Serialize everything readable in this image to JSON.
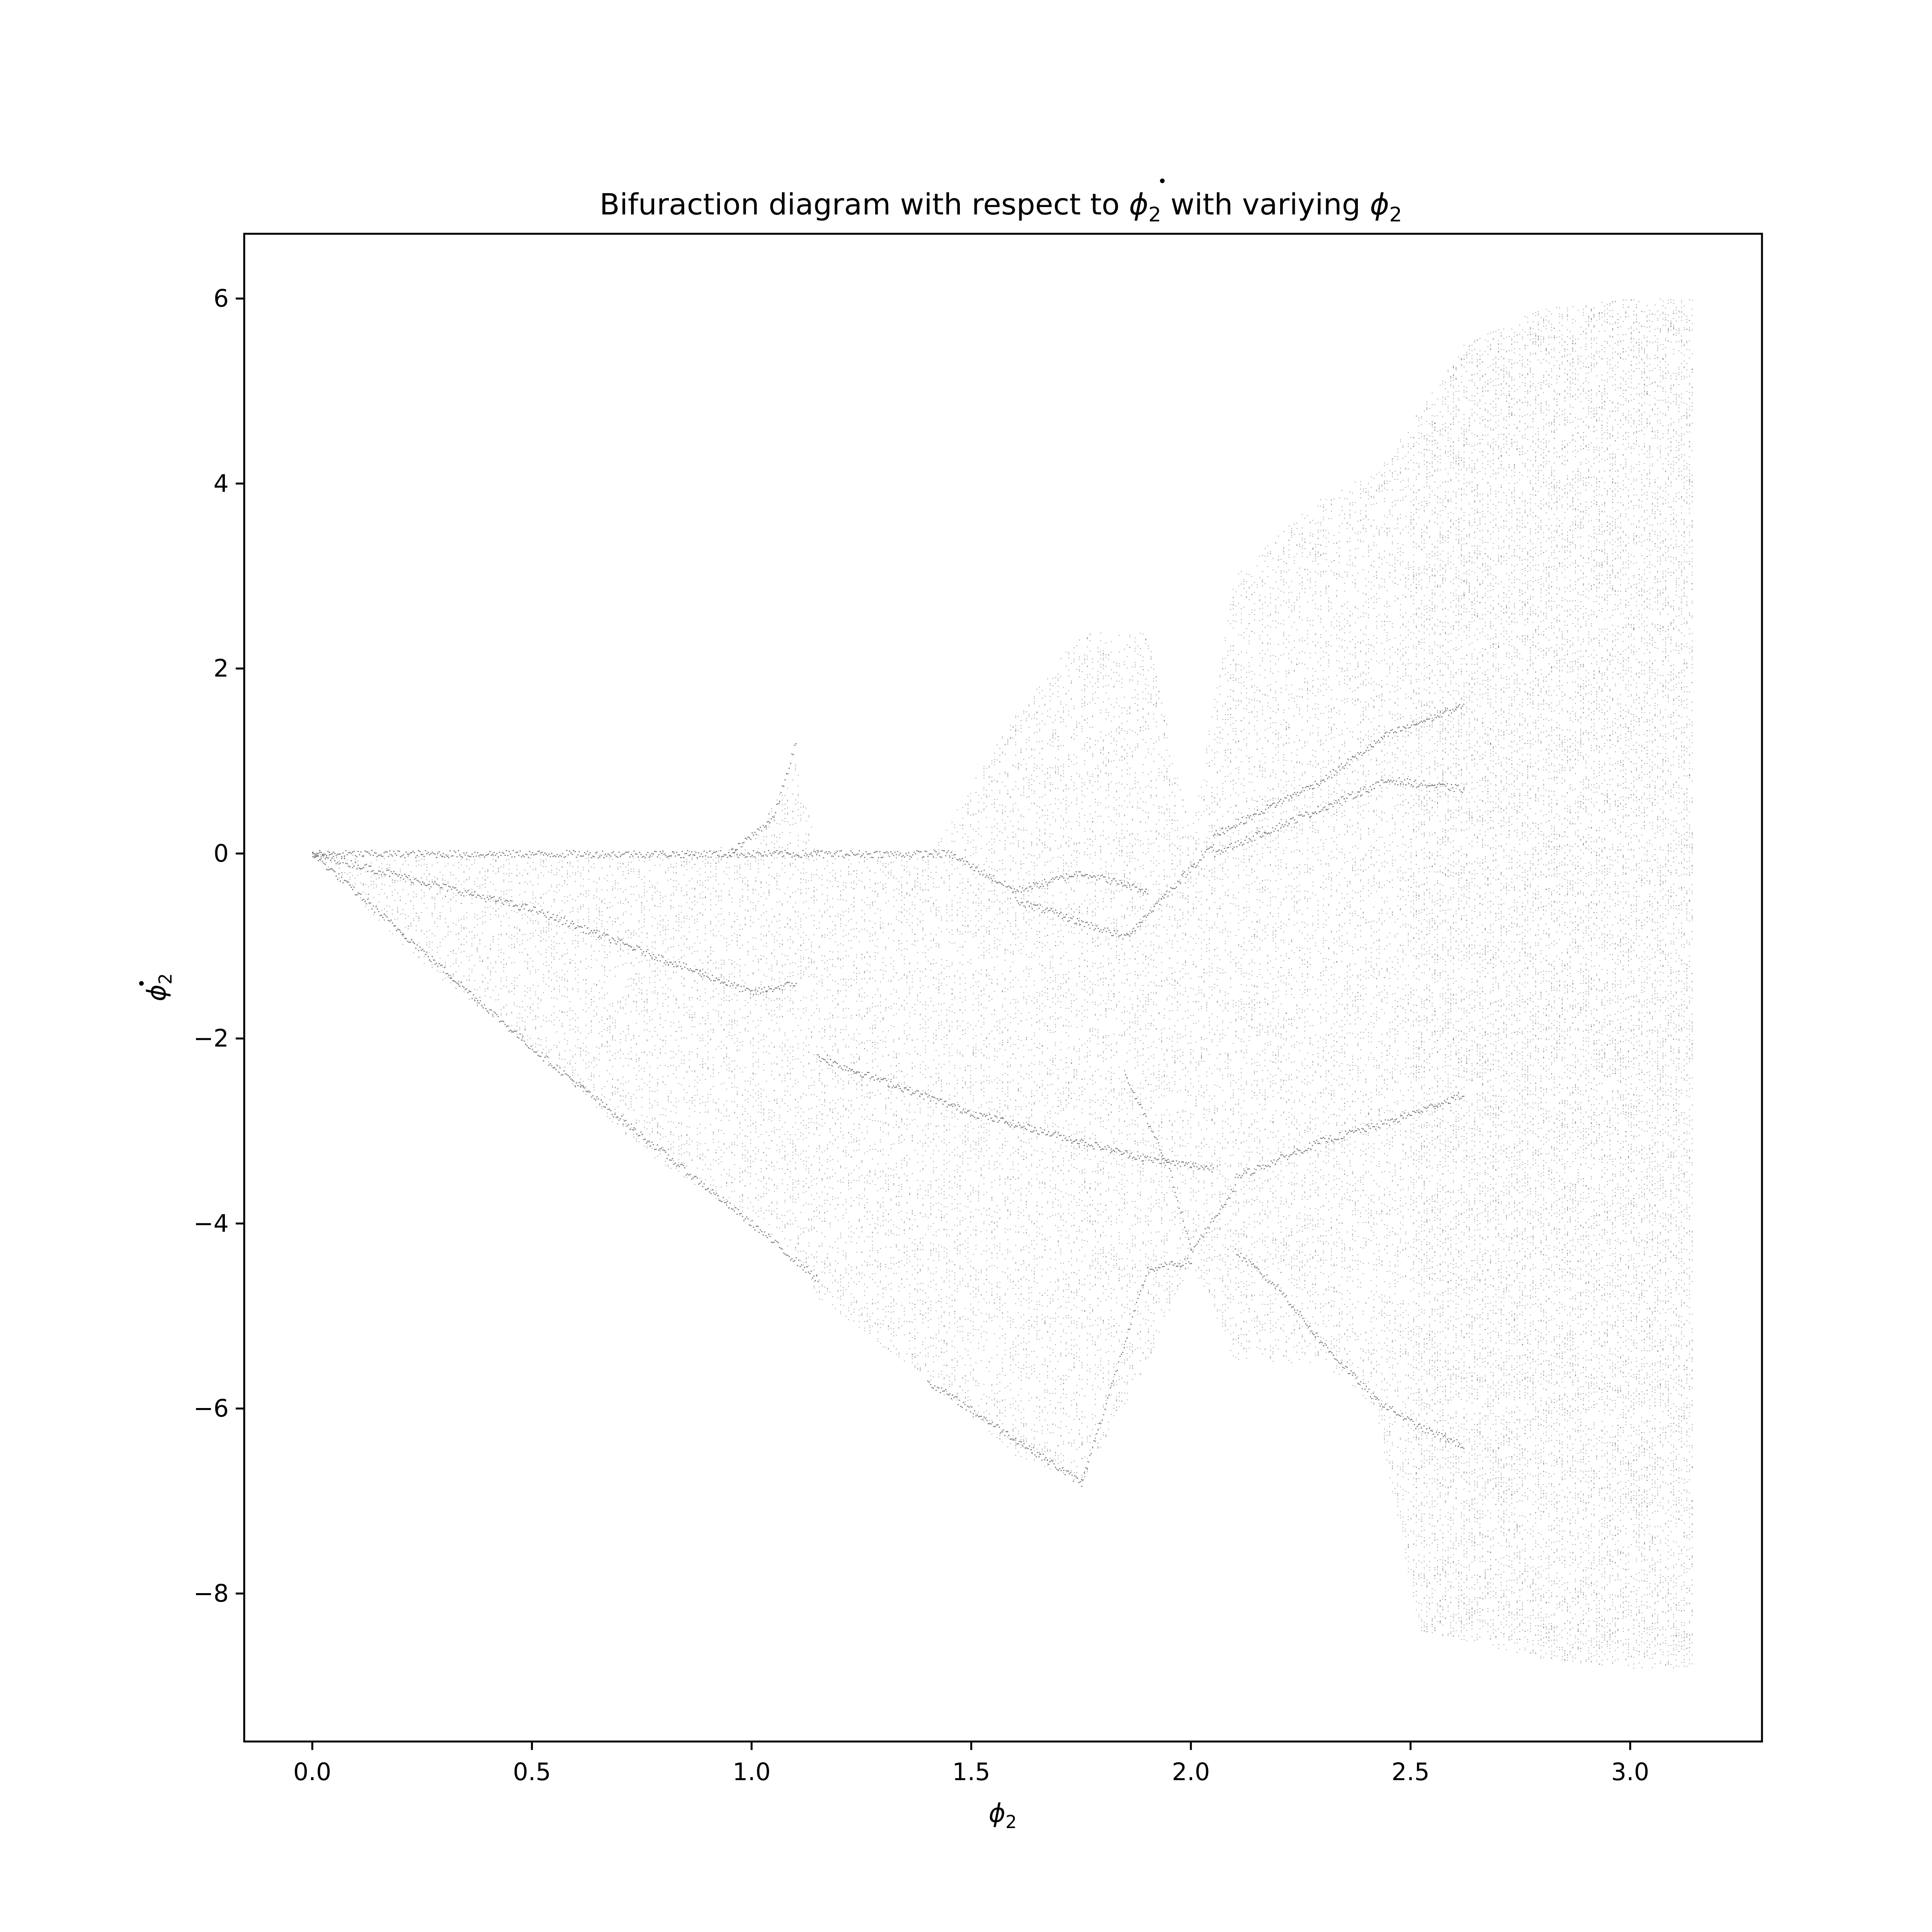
{
  "chart_data": {
    "type": "scatter",
    "title": {
      "prefix": "Bifuraction diagram with respect to ",
      "sym1": "ϕ",
      "sub1": "2",
      "middle": " with variying ",
      "sym2": "ϕ",
      "sub2": "2"
    },
    "xlabel": {
      "sym": "ϕ",
      "sub": "2"
    },
    "ylabel": {
      "sym": "ϕ",
      "sub": "2"
    },
    "xlim": [
      -0.155,
      3.3
    ],
    "ylim": [
      -9.6,
      6.7
    ],
    "x_ticks": [
      0.0,
      0.5,
      1.0,
      1.5,
      2.0,
      2.5,
      3.0
    ],
    "x_tick_labels": [
      "0.0",
      "0.5",
      "1.0",
      "1.5",
      "2.0",
      "2.5",
      "3.0"
    ],
    "y_ticks": [
      -8,
      -6,
      -4,
      -2,
      0,
      2,
      4,
      6
    ],
    "y_tick_labels": [
      "−8",
      "−6",
      "−4",
      "−2",
      "0",
      "2",
      "4",
      "6"
    ],
    "grid": false,
    "legend": "none",
    "marker_color": "#555555",
    "x_range_sampled": [
      0.0,
      3.14
    ],
    "envelope": [
      {
        "x": 0.0,
        "y_min": 0.0,
        "y_max": 0.0
      },
      {
        "x": 0.25,
        "y_min": -1.2,
        "y_max": 0.0
      },
      {
        "x": 0.5,
        "y_min": -2.1,
        "y_max": 0.0
      },
      {
        "x": 0.75,
        "y_min": -3.2,
        "y_max": 0.0
      },
      {
        "x": 1.0,
        "y_min": -4.0,
        "y_max": 0.1
      },
      {
        "x": 1.1,
        "y_min": -4.3,
        "y_max": 1.0
      },
      {
        "x": 1.15,
        "y_min": -4.8,
        "y_max": 0.0
      },
      {
        "x": 1.4,
        "y_min": -5.7,
        "y_max": 0.0
      },
      {
        "x": 1.6,
        "y_min": -6.5,
        "y_max": 1.5
      },
      {
        "x": 1.75,
        "y_min": -6.8,
        "y_max": 2.4
      },
      {
        "x": 1.9,
        "y_min": -5.5,
        "y_max": 2.4
      },
      {
        "x": 2.0,
        "y_min": -4.4,
        "y_max": 0.2
      },
      {
        "x": 2.1,
        "y_min": -5.5,
        "y_max": 3.0
      },
      {
        "x": 2.3,
        "y_min": -5.5,
        "y_max": 3.9
      },
      {
        "x": 2.42,
        "y_min": -6.0,
        "y_max": 4.1
      },
      {
        "x": 2.52,
        "y_min": -8.4,
        "y_max": 4.8
      },
      {
        "x": 2.62,
        "y_min": -8.5,
        "y_max": 5.5
      },
      {
        "x": 2.8,
        "y_min": -8.7,
        "y_max": 5.9
      },
      {
        "x": 3.0,
        "y_min": -8.8,
        "y_max": 6.0
      },
      {
        "x": 3.14,
        "y_min": -8.8,
        "y_max": 6.0
      }
    ],
    "branches": [
      {
        "x": [
          0.0,
          1.15
        ],
        "y": [
          0.0,
          0.0
        ]
      },
      {
        "x": [
          0.0,
          0.5,
          1.0,
          1.1
        ],
        "y": [
          0.0,
          -0.6,
          -1.5,
          -1.4
        ]
      },
      {
        "x": [
          0.0,
          0.5,
          1.0,
          1.15
        ],
        "y": [
          0.0,
          -2.1,
          -4.0,
          -4.6
        ]
      },
      {
        "x": [
          0.95,
          1.05,
          1.1
        ],
        "y": [
          0.0,
          0.4,
          1.2
        ]
      },
      {
        "x": [
          1.15,
          1.45,
          1.6,
          1.75,
          1.9
        ],
        "y": [
          0.0,
          0.0,
          -0.4,
          -0.2,
          -0.4
        ]
      },
      {
        "x": [
          1.15,
          1.5,
          1.9,
          2.05
        ],
        "y": [
          -2.2,
          -2.8,
          -3.3,
          -3.4
        ]
      },
      {
        "x": [
          1.4,
          1.75
        ],
        "y": [
          -5.7,
          -6.8
        ]
      },
      {
        "x": [
          1.6,
          1.85,
          2.05
        ],
        "y": [
          -0.5,
          -0.9,
          0.1
        ]
      },
      {
        "x": [
          1.75,
          1.9,
          2.0
        ],
        "y": [
          -6.8,
          -4.5,
          -4.4
        ]
      },
      {
        "x": [
          1.85,
          1.95,
          2.0,
          2.1
        ],
        "y": [
          -2.4,
          -3.4,
          -4.3,
          -3.6
        ]
      },
      {
        "x": [
          2.05,
          2.3,
          2.45,
          2.62
        ],
        "y": [
          0.2,
          0.8,
          1.3,
          1.6
        ]
      },
      {
        "x": [
          2.05,
          2.3,
          2.45,
          2.62
        ],
        "y": [
          0.0,
          0.5,
          0.8,
          0.7
        ]
      },
      {
        "x": [
          2.1,
          2.3,
          2.45,
          2.62
        ],
        "y": [
          -3.5,
          -3.1,
          -2.9,
          -2.6
        ]
      },
      {
        "x": [
          2.1,
          2.2,
          2.3,
          2.42
        ],
        "y": [
          -4.3,
          -4.7,
          -5.3,
          -5.9
        ]
      },
      {
        "x": [
          2.42,
          2.52,
          2.62
        ],
        "y": [
          -5.9,
          -6.2,
          -6.4
        ]
      }
    ]
  }
}
